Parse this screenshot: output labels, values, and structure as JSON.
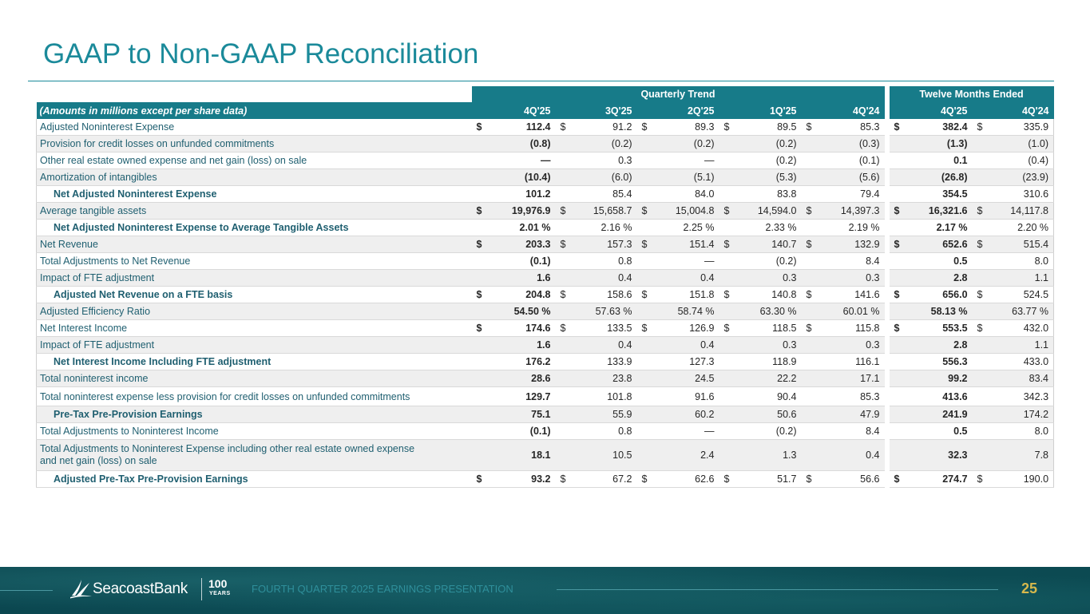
{
  "title": "GAAP to Non-GAAP Reconciliation",
  "colors": {
    "accent": "#1b8a9a",
    "header": "#177b89",
    "footer": "#0e5059",
    "page_number": "#d6b84c"
  },
  "table": {
    "group_headers": {
      "quarterly": "Quarterly Trend",
      "twelve_months": "Twelve Months Ended"
    },
    "note": "(Amounts in millions except per share data)",
    "columns": [
      "4Q'25",
      "3Q'25",
      "2Q'25",
      "1Q'25",
      "4Q'24",
      "4Q'25",
      "4Q'24"
    ],
    "currency_symbol": "$",
    "percent_symbol": "%",
    "rows": [
      {
        "label": "Adjusted Noninterest Expense",
        "type": "line",
        "currency": true,
        "percent": false,
        "values": [
          "112.4",
          "91.2",
          "89.3",
          "89.5",
          "85.3",
          "382.4",
          "335.9"
        ]
      },
      {
        "label": "Provision for credit losses on unfunded commitments",
        "type": "line",
        "currency": false,
        "percent": false,
        "values": [
          "(0.8)",
          "(0.2)",
          "(0.2)",
          "(0.2)",
          "(0.3)",
          "(1.3)",
          "(1.0)"
        ]
      },
      {
        "label": "Other real estate owned expense and net gain (loss) on sale",
        "type": "line",
        "currency": false,
        "percent": false,
        "values": [
          "—",
          "0.3",
          "—",
          "(0.2)",
          "(0.1)",
          "0.1",
          "(0.4)"
        ]
      },
      {
        "label": "Amortization of intangibles",
        "type": "line",
        "currency": false,
        "percent": false,
        "values": [
          "(10.4)",
          "(6.0)",
          "(5.1)",
          "(5.3)",
          "(5.6)",
          "(26.8)",
          "(23.9)"
        ]
      },
      {
        "label": "Net Adjusted Noninterest Expense",
        "type": "subtotal",
        "currency": false,
        "percent": false,
        "values": [
          "101.2",
          "85.4",
          "84.0",
          "83.8",
          "79.4",
          "354.5",
          "310.6"
        ]
      },
      {
        "label": "Average tangible assets",
        "type": "line",
        "currency": true,
        "percent": false,
        "values": [
          "19,976.9",
          "15,658.7",
          "15,004.8",
          "14,594.0",
          "14,397.3",
          "16,321.6",
          "14,117.8"
        ]
      },
      {
        "label": "Net Adjusted Noninterest Expense to Average Tangible Assets",
        "type": "subtotal",
        "currency": false,
        "percent": true,
        "values": [
          "2.01",
          "2.16",
          "2.25",
          "2.33",
          "2.19",
          "2.17",
          "2.20"
        ]
      },
      {
        "label": "Net Revenue",
        "type": "line",
        "currency": true,
        "percent": false,
        "values": [
          "203.3",
          "157.3",
          "151.4",
          "140.7",
          "132.9",
          "652.6",
          "515.4"
        ]
      },
      {
        "label": "Total Adjustments to Net Revenue",
        "type": "line",
        "currency": false,
        "percent": false,
        "values": [
          "(0.1)",
          "0.8",
          "—",
          "(0.2)",
          "8.4",
          "0.5",
          "8.0"
        ]
      },
      {
        "label": "Impact of FTE adjustment",
        "type": "line",
        "currency": false,
        "percent": false,
        "values": [
          "1.6",
          "0.4",
          "0.4",
          "0.3",
          "0.3",
          "2.8",
          "1.1"
        ]
      },
      {
        "label": "Adjusted Net Revenue on a FTE basis",
        "type": "subtotal",
        "currency": true,
        "percent": false,
        "values": [
          "204.8",
          "158.6",
          "151.8",
          "140.8",
          "141.6",
          "656.0",
          "524.5"
        ]
      },
      {
        "label": "Adjusted Efficiency Ratio",
        "type": "line",
        "currency": false,
        "percent": true,
        "values": [
          "54.50",
          "57.63",
          "58.74",
          "63.30",
          "60.01",
          "58.13",
          "63.77"
        ]
      },
      {
        "label": "Net Interest Income",
        "type": "line",
        "currency": true,
        "percent": false,
        "values": [
          "174.6",
          "133.5",
          "126.9",
          "118.5",
          "115.8",
          "553.5",
          "432.0"
        ]
      },
      {
        "label": "Impact of FTE adjustment",
        "type": "line",
        "currency": false,
        "percent": false,
        "values": [
          "1.6",
          "0.4",
          "0.4",
          "0.3",
          "0.3",
          "2.8",
          "1.1"
        ]
      },
      {
        "label": "Net Interest Income Including FTE adjustment",
        "type": "subtotal",
        "currency": false,
        "percent": false,
        "values": [
          "176.2",
          "133.9",
          "127.3",
          "118.9",
          "116.1",
          "556.3",
          "433.0"
        ]
      },
      {
        "label": "Total noninterest income",
        "type": "line",
        "currency": false,
        "percent": false,
        "values": [
          "28.6",
          "23.8",
          "24.5",
          "22.2",
          "17.1",
          "99.2",
          "83.4"
        ]
      },
      {
        "label": "Total noninterest expense less provision for credit losses on unfunded commitments",
        "type": "line",
        "currency": false,
        "percent": false,
        "values": [
          "129.7",
          "101.8",
          "91.6",
          "90.4",
          "85.3",
          "413.6",
          "342.3"
        ]
      },
      {
        "label": "Pre-Tax Pre-Provision Earnings",
        "type": "subtotal",
        "currency": false,
        "percent": false,
        "values": [
          "75.1",
          "55.9",
          "60.2",
          "50.6",
          "47.9",
          "241.9",
          "174.2"
        ]
      },
      {
        "label": "Total Adjustments to Noninterest Income",
        "type": "line",
        "currency": false,
        "percent": false,
        "values": [
          "(0.1)",
          "0.8",
          "—",
          "(0.2)",
          "8.4",
          "0.5",
          "8.0"
        ]
      },
      {
        "label": "Total Adjustments to Noninterest Expense including other real estate owned expense and net gain (loss) on sale",
        "type": "line",
        "currency": false,
        "percent": false,
        "values": [
          "18.1",
          "10.5",
          "2.4",
          "1.3",
          "0.4",
          "32.3",
          "7.8"
        ]
      },
      {
        "label": "Adjusted Pre-Tax Pre-Provision Earnings",
        "type": "subtotal",
        "currency": true,
        "percent": false,
        "values": [
          "93.2",
          "67.2",
          "62.6",
          "51.7",
          "56.6",
          "274.7",
          "190.0"
        ]
      }
    ]
  },
  "footer": {
    "logo_icon": "sail-logo-icon",
    "logo_text": "SeacoastBank",
    "badge_number": "100",
    "badge_text": "YEARS",
    "presentation": "FOURTH QUARTER 2025 EARNINGS PRESENTATION",
    "page_number": "25"
  }
}
